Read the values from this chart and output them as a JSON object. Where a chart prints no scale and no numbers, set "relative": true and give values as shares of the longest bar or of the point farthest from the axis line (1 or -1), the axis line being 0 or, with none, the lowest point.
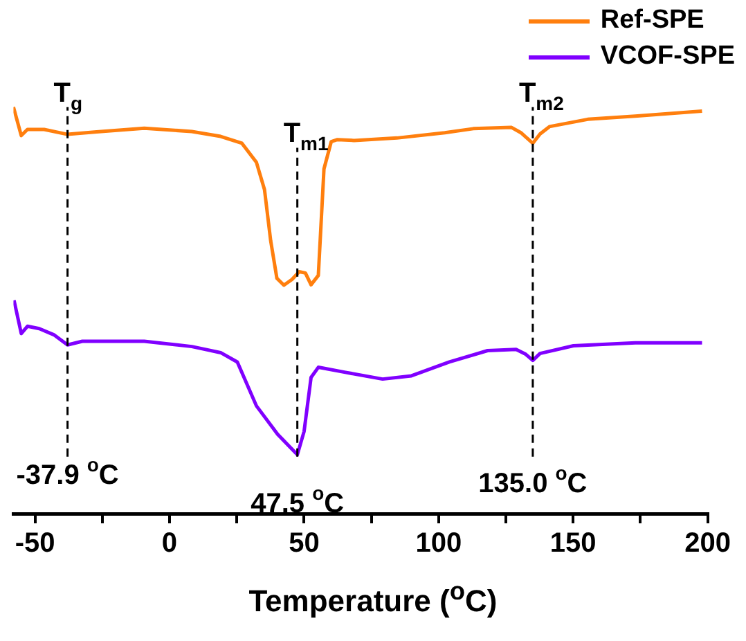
{
  "chart_data": {
    "type": "line",
    "relative": true,
    "xlabel": "Temperature ($^{o}$C)",
    "xlim": [
      -58,
      200
    ],
    "xticks": [
      -50,
      {
        "value": -25,
        "label": null
      },
      0,
      {
        "value": 25,
        "label": null
      },
      50,
      {
        "value": 75,
        "label": null
      },
      100,
      {
        "value": 125,
        "label": null
      },
      150,
      {
        "value": 175,
        "label": null
      },
      200
    ],
    "grid": false,
    "legend": "top right",
    "marker": "none",
    "line_style": "solid",
    "series": [
      {
        "name": "Ref-SPE",
        "color": "#ff7f0e",
        "x": [
          -58.0,
          -55.1,
          -52.8,
          -46.6,
          -37.9,
          -27.1,
          -9.4,
          8.3,
          19.0,
          26.9,
          32.3,
          35.3,
          37.6,
          39.9,
          42.5,
          45.5,
          48.2,
          50.5,
          52.6,
          55.3,
          57.4,
          60.1,
          62.4,
          68.6,
          84.5,
          102.3,
          112.9,
          127.1,
          130.6,
          135.0,
          137.7,
          141.2,
          155.4,
          173.1,
          197.9
        ],
        "values": [
          1.0,
          0.93,
          0.945,
          0.945,
          0.933,
          0.939,
          0.948,
          0.94,
          0.928,
          0.911,
          0.864,
          0.797,
          0.671,
          0.579,
          0.562,
          0.576,
          0.595,
          0.592,
          0.563,
          0.586,
          0.848,
          0.915,
          0.92,
          0.918,
          0.924,
          0.937,
          0.947,
          0.95,
          0.937,
          0.911,
          0.934,
          0.952,
          0.97,
          0.978,
          0.99
        ]
      },
      {
        "name": "VCOF-SPE",
        "color": "#8000ff",
        "x": [
          -57.8,
          -55.1,
          -52.8,
          -48.4,
          -43.0,
          -37.9,
          -32.4,
          -9.4,
          8.3,
          19.0,
          25.2,
          32.3,
          40.2,
          47.5,
          50.0,
          52.6,
          55.3,
          65.0,
          79.2,
          89.9,
          104.0,
          118.2,
          128.8,
          132.4,
          135.0,
          137.7,
          150.1,
          173.1,
          197.9
        ],
        "values": [
          0.525,
          0.443,
          0.461,
          0.455,
          0.44,
          0.415,
          0.424,
          0.424,
          0.411,
          0.396,
          0.373,
          0.265,
          0.195,
          0.145,
          0.202,
          0.335,
          0.36,
          0.348,
          0.331,
          0.339,
          0.373,
          0.401,
          0.404,
          0.392,
          0.377,
          0.394,
          0.413,
          0.42,
          0.42
        ]
      }
    ],
    "ref_lines": [
      {
        "axis": "x",
        "value": -37.9,
        "label": "T$_{g}$",
        "line_style": "dashed",
        "color": "#000000"
      },
      {
        "axis": "x",
        "value": 47.5,
        "label": "T$_{m1}$",
        "line_style": "dashed",
        "color": "#000000"
      },
      {
        "axis": "x",
        "value": 135.0,
        "label": "T$_{m2}$",
        "line_style": "dashed",
        "color": "#000000"
      }
    ],
    "annotations": [
      "-37.9 $^{o}$C",
      "47.5 $^{o}$C",
      "135.0 $^{o}$C"
    ]
  }
}
